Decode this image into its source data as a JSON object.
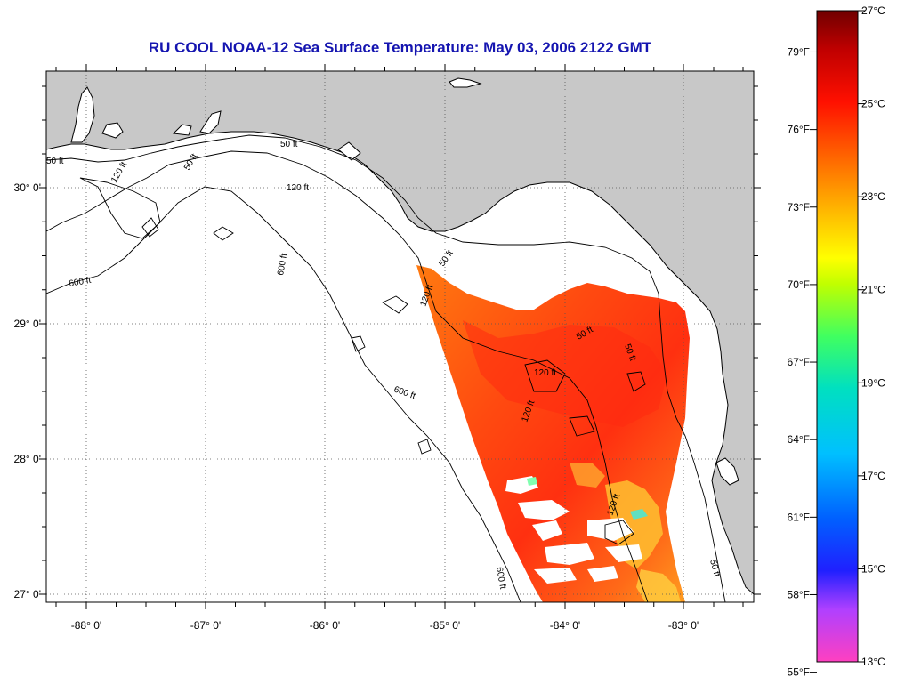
{
  "title": "RU COOL  NOAA-12  Sea Surface Temperature:  May 03, 2006 2122 GMT",
  "map": {
    "longitude_labels": [
      "-88° 0'",
      "-87° 0'",
      "-86° 0'",
      "-85° 0'",
      "-84° 0'",
      "-83° 0'"
    ],
    "latitude_labels": [
      "30° 0'",
      "29° 0'",
      "28° 0'",
      "27° 0'"
    ],
    "contour_labels": [
      "50 ft",
      "50 ft",
      "50 ft",
      "50 ft",
      "50 ft",
      "50 ft",
      "50 ft",
      "120 ft",
      "120 ft",
      "120 ft",
      "120 ft",
      "120 ft",
      "120 ft",
      "600 ft",
      "600 ft",
      "600 ft",
      "600 ft"
    ],
    "colors": {
      "land": "#c8c8c8",
      "ocean_no_data": "#ffffff",
      "sst_dominant": "#ff5a10",
      "sst_warmest": "#ff2a10",
      "sst_coolest_patches": "#ffd040"
    }
  },
  "colorbar": {
    "fahrenheit_labels": [
      "79°F",
      "76°F",
      "73°F",
      "70°F",
      "67°F",
      "64°F",
      "61°F",
      "58°F",
      "55°F"
    ],
    "celsius_labels": [
      "27°C",
      "25°C",
      "23°C",
      "21°C",
      "19°C",
      "17°C",
      "15°C",
      "13°C"
    ],
    "temperature_range_c": [
      13,
      27
    ],
    "colors": [
      "#ff40c0",
      "#8040ff",
      "#0000ff",
      "#00a0ff",
      "#00e0e0",
      "#40ff60",
      "#e0ff00",
      "#ffc000",
      "#ff6000",
      "#ff0000",
      "#800000"
    ]
  }
}
